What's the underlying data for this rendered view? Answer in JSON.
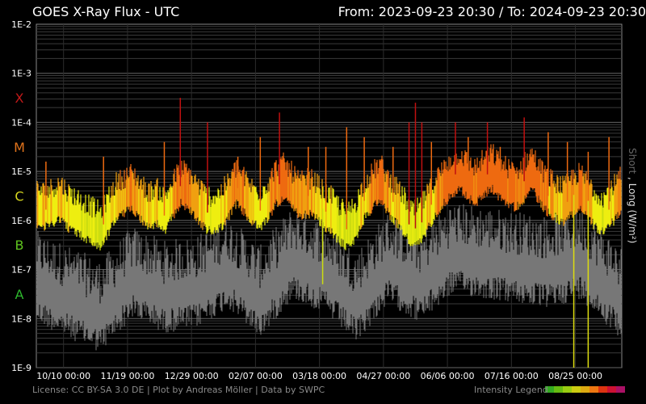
{
  "chart_data": {
    "type": "line",
    "title": "GOES X-Ray Flux - UTC",
    "range": {
      "from_label": "From:",
      "from": "2023-09-23 20:30",
      "sep": "/",
      "to_label": "To:",
      "to": "2024-09-23 20:30"
    },
    "ylabel_short": "Short",
    "ylabel_sep": ",",
    "ylabel_long": "Long (W/m²)",
    "yscale": "log",
    "ylim": [
      1e-09,
      0.01
    ],
    "y_ticks": [
      "1E-9",
      "1E-8",
      "1E-7",
      "1E-6",
      "1E-5",
      "1E-4",
      "1E-3",
      "1E-2"
    ],
    "flare_classes": [
      {
        "label": "A",
        "color": "#2db82d"
      },
      {
        "label": "B",
        "color": "#5fc41f"
      },
      {
        "label": "C",
        "color": "#d6d61f"
      },
      {
        "label": "M",
        "color": "#e0731c"
      },
      {
        "label": "X",
        "color": "#c01919"
      }
    ],
    "x_ticks": [
      "10/10 00:00",
      "11/19 00:00",
      "12/29 00:00",
      "02/07 00:00",
      "03/18 00:00",
      "04/27 00:00",
      "06/06 00:00",
      "07/16 00:00",
      "08/25 00:00"
    ],
    "grid": true,
    "series": [
      {
        "name": "Long",
        "color": "#ffff00"
      },
      {
        "name": "Short",
        "color": "#808080"
      }
    ],
    "long_log_envelope": [
      [
        0,
        -5.7
      ],
      [
        5,
        -5.8
      ],
      [
        10,
        -5.7
      ],
      [
        15,
        -5.6
      ],
      [
        20,
        -5.8
      ],
      [
        25,
        -5.9
      ],
      [
        30,
        -6.0
      ],
      [
        35,
        -6.1
      ],
      [
        40,
        -6.2
      ],
      [
        45,
        -5.9
      ],
      [
        50,
        -5.6
      ],
      [
        55,
        -5.5
      ],
      [
        60,
        -5.4
      ],
      [
        65,
        -5.6
      ],
      [
        70,
        -5.8
      ],
      [
        75,
        -5.7
      ],
      [
        80,
        -5.9
      ],
      [
        85,
        -5.6
      ],
      [
        90,
        -5.3
      ],
      [
        95,
        -5.4
      ],
      [
        100,
        -5.6
      ],
      [
        105,
        -5.8
      ],
      [
        110,
        -5.9
      ],
      [
        115,
        -5.8
      ],
      [
        120,
        -5.6
      ],
      [
        125,
        -5.3
      ],
      [
        130,
        -5.5
      ],
      [
        135,
        -5.7
      ],
      [
        140,
        -5.8
      ],
      [
        145,
        -5.6
      ],
      [
        150,
        -5.3
      ],
      [
        155,
        -5.2
      ],
      [
        160,
        -5.4
      ],
      [
        165,
        -5.6
      ],
      [
        170,
        -5.5
      ],
      [
        175,
        -5.6
      ],
      [
        180,
        -5.8
      ],
      [
        185,
        -5.9
      ],
      [
        190,
        -6.1
      ],
      [
        195,
        -6.2
      ],
      [
        200,
        -6.0
      ],
      [
        205,
        -5.6
      ],
      [
        210,
        -5.4
      ],
      [
        215,
        -5.2
      ],
      [
        220,
        -5.5
      ],
      [
        225,
        -5.7
      ],
      [
        230,
        -5.9
      ],
      [
        235,
        -6.2
      ],
      [
        240,
        -6.1
      ],
      [
        245,
        -5.8
      ],
      [
        250,
        -5.5
      ],
      [
        255,
        -5.3
      ],
      [
        260,
        -5.1
      ],
      [
        265,
        -5.0
      ],
      [
        270,
        -5.2
      ],
      [
        275,
        -5.3
      ],
      [
        280,
        -5.1
      ],
      [
        285,
        -5.0
      ],
      [
        290,
        -5.2
      ],
      [
        295,
        -5.3
      ],
      [
        300,
        -5.4
      ],
      [
        305,
        -5.2
      ],
      [
        310,
        -5.0
      ],
      [
        315,
        -5.3
      ],
      [
        320,
        -5.5
      ],
      [
        325,
        -5.6
      ],
      [
        330,
        -5.7
      ],
      [
        335,
        -5.5
      ],
      [
        340,
        -5.4
      ],
      [
        345,
        -5.6
      ],
      [
        350,
        -5.8
      ],
      [
        355,
        -5.9
      ],
      [
        360,
        -5.7
      ],
      [
        365,
        -5.5
      ]
    ],
    "short_log_envelope": [
      [
        0,
        -7.3
      ],
      [
        20,
        -7.6
      ],
      [
        40,
        -7.9
      ],
      [
        60,
        -7.2
      ],
      [
        80,
        -7.5
      ],
      [
        100,
        -7.4
      ],
      [
        120,
        -7.0
      ],
      [
        140,
        -7.6
      ],
      [
        160,
        -6.8
      ],
      [
        180,
        -7.1
      ],
      [
        200,
        -7.7
      ],
      [
        220,
        -6.9
      ],
      [
        240,
        -7.3
      ],
      [
        260,
        -6.7
      ],
      [
        280,
        -6.8
      ],
      [
        300,
        -6.9
      ],
      [
        320,
        -7.0
      ],
      [
        340,
        -6.8
      ],
      [
        365,
        -7.6
      ]
    ],
    "flares": [
      {
        "day": 6,
        "log": -4.8
      },
      {
        "day": 42,
        "log": -4.7
      },
      {
        "day": 80,
        "log": -4.4
      },
      {
        "day": 90,
        "log": -3.5
      },
      {
        "day": 107,
        "log": -4.0
      },
      {
        "day": 126,
        "log": -4.7
      },
      {
        "day": 140,
        "log": -4.3
      },
      {
        "day": 152,
        "log": -3.8
      },
      {
        "day": 170,
        "log": -4.5
      },
      {
        "day": 181,
        "log": -4.5
      },
      {
        "day": 194,
        "log": -4.1
      },
      {
        "day": 205,
        "log": -4.3
      },
      {
        "day": 223,
        "log": -4.5
      },
      {
        "day": 233,
        "log": -4.0
      },
      {
        "day": 237,
        "log": -3.6
      },
      {
        "day": 241,
        "log": -4.0
      },
      {
        "day": 247,
        "log": -4.4
      },
      {
        "day": 255,
        "log": -4.8
      },
      {
        "day": 262,
        "log": -4.0
      },
      {
        "day": 270,
        "log": -4.3
      },
      {
        "day": 282,
        "log": -4.0
      },
      {
        "day": 290,
        "log": -4.5
      },
      {
        "day": 305,
        "log": -3.9
      },
      {
        "day": 320,
        "log": -4.2
      },
      {
        "day": 332,
        "log": -4.4
      },
      {
        "day": 345,
        "log": -4.6
      },
      {
        "day": 358,
        "log": -4.3
      }
    ],
    "dips": [
      {
        "day": 336,
        "log": -9.0
      },
      {
        "day": 345,
        "log": -9.0
      },
      {
        "day": 179,
        "log": -7.3
      }
    ]
  },
  "footer": {
    "license": "License: CC BY-SA 3.0 DE | Plot by Andreas Möller | Data by SWPC",
    "legend_label": "Intensity Legend"
  },
  "legend_colors": [
    "#33aa22",
    "#66bb11",
    "#99cc11",
    "#cccc11",
    "#ddaa11",
    "#ee7711",
    "#dd3311",
    "#cc1133",
    "#aa1166"
  ]
}
